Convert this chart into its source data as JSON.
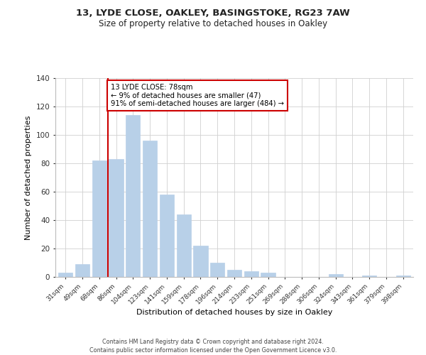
{
  "title_line1": "13, LYDE CLOSE, OAKLEY, BASINGSTOKE, RG23 7AW",
  "title_line2": "Size of property relative to detached houses in Oakley",
  "xlabel": "Distribution of detached houses by size in Oakley",
  "ylabel": "Number of detached properties",
  "bar_labels": [
    "31sqm",
    "49sqm",
    "68sqm",
    "86sqm",
    "104sqm",
    "123sqm",
    "141sqm",
    "159sqm",
    "178sqm",
    "196sqm",
    "214sqm",
    "233sqm",
    "251sqm",
    "269sqm",
    "288sqm",
    "306sqm",
    "324sqm",
    "343sqm",
    "361sqm",
    "379sqm",
    "398sqm"
  ],
  "bar_values": [
    3,
    9,
    82,
    83,
    114,
    96,
    58,
    44,
    22,
    10,
    5,
    4,
    3,
    0,
    0,
    0,
    2,
    0,
    1,
    0,
    1
  ],
  "bar_color": "#b8d0e8",
  "bar_edge_color": "#b8d0e8",
  "annotation_line1": "13 LYDE CLOSE: 78sqm",
  "annotation_line2": "← 9% of detached houses are smaller (47)",
  "annotation_line3": "91% of semi-detached houses are larger (484) →",
  "annotation_box_color": "#ffffff",
  "annotation_box_edge_color": "#cc0000",
  "marker_line_color": "#cc0000",
  "ylim": [
    0,
    140
  ],
  "yticks": [
    0,
    20,
    40,
    60,
    80,
    100,
    120,
    140
  ],
  "footer_line1": "Contains HM Land Registry data © Crown copyright and database right 2024.",
  "footer_line2": "Contains public sector information licensed under the Open Government Licence v3.0.",
  "background_color": "#ffffff",
  "grid_color": "#d0d0d0"
}
